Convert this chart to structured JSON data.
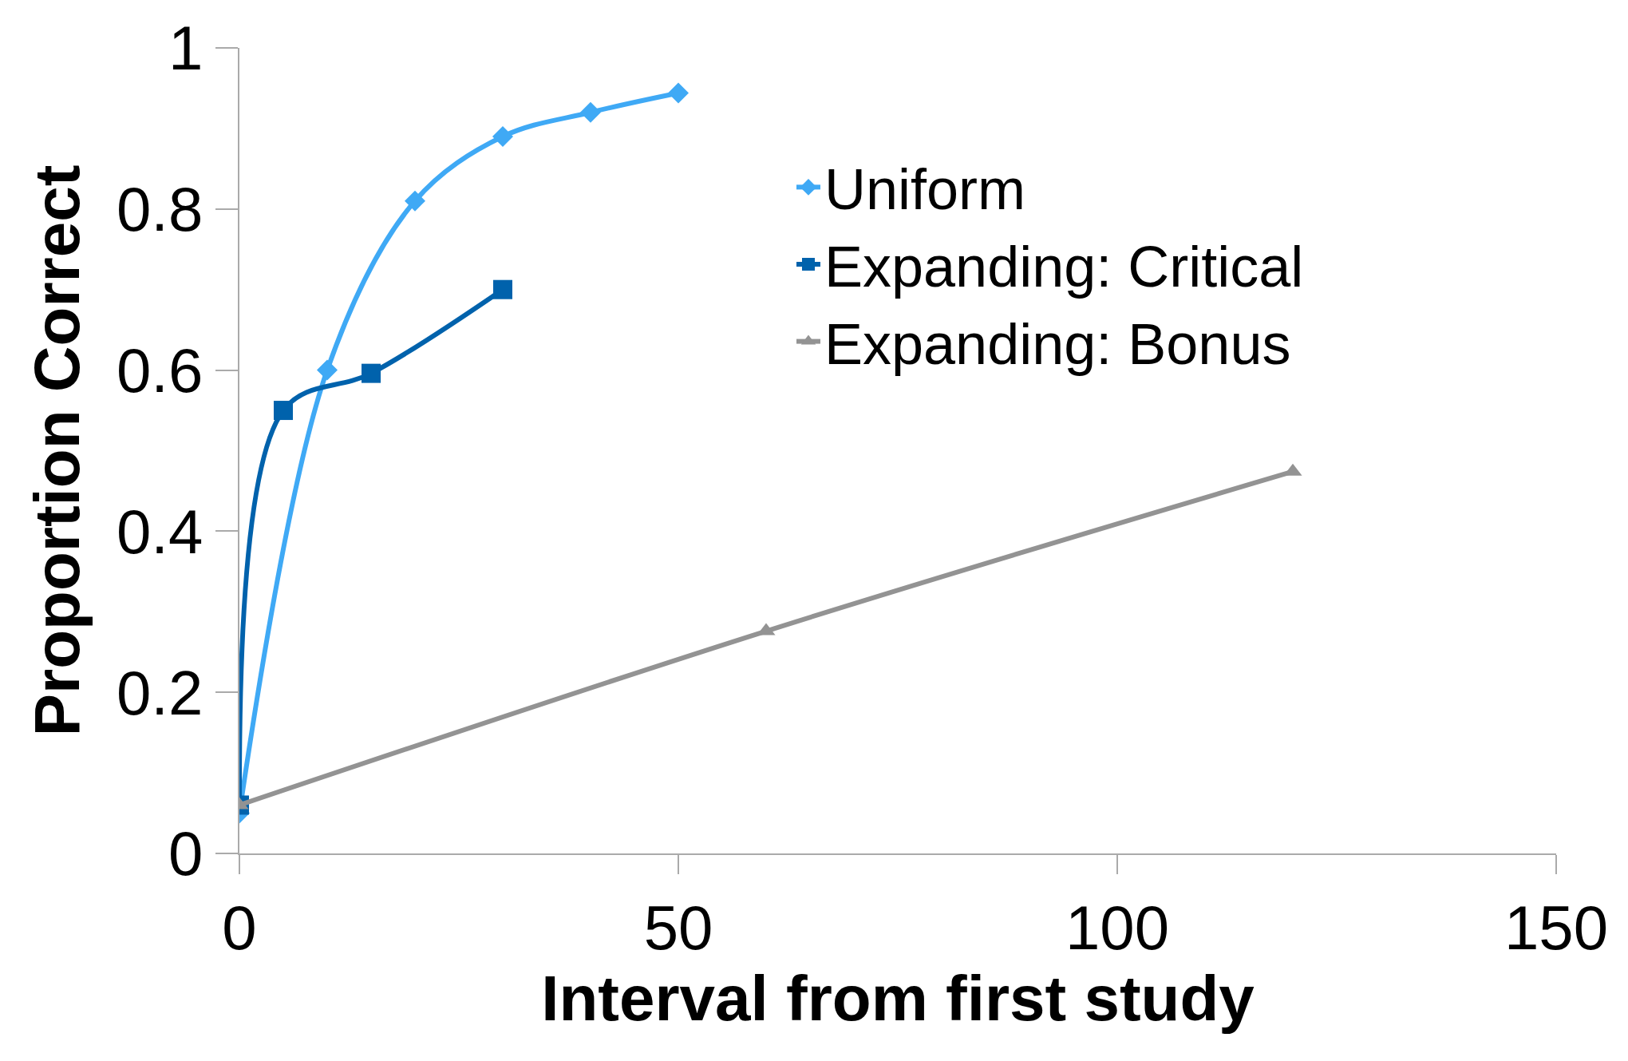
{
  "chart_data": {
    "type": "line",
    "xlabel": "Interval from first study",
    "ylabel": "Proportion Correct",
    "xlim": [
      0,
      150
    ],
    "xticks": [
      0,
      50,
      100,
      150
    ],
    "ylim": [
      0,
      1
    ],
    "yticks": [
      0,
      0.2,
      0.4,
      0.6,
      0.8,
      1
    ],
    "legend": "right",
    "line_style": "solid",
    "series": [
      {
        "name": "Uniform",
        "color": "#3fa9f5",
        "marker": "diamond",
        "x": [
          0,
          10,
          20,
          30,
          40,
          50
        ],
        "values": [
          0.05,
          0.6,
          0.81,
          0.89,
          0.92,
          0.944
        ]
      },
      {
        "name": "Expanding: Critical",
        "color": "#0062ac",
        "marker": "square",
        "x": [
          0,
          5,
          15,
          30
        ],
        "values": [
          0.06,
          0.55,
          0.596,
          0.7
        ]
      },
      {
        "name": "Expanding: Bonus",
        "color": "#939393",
        "marker": "triangle",
        "x": [
          0,
          60,
          120
        ],
        "values": [
          0.06,
          0.276,
          0.474
        ]
      }
    ]
  }
}
